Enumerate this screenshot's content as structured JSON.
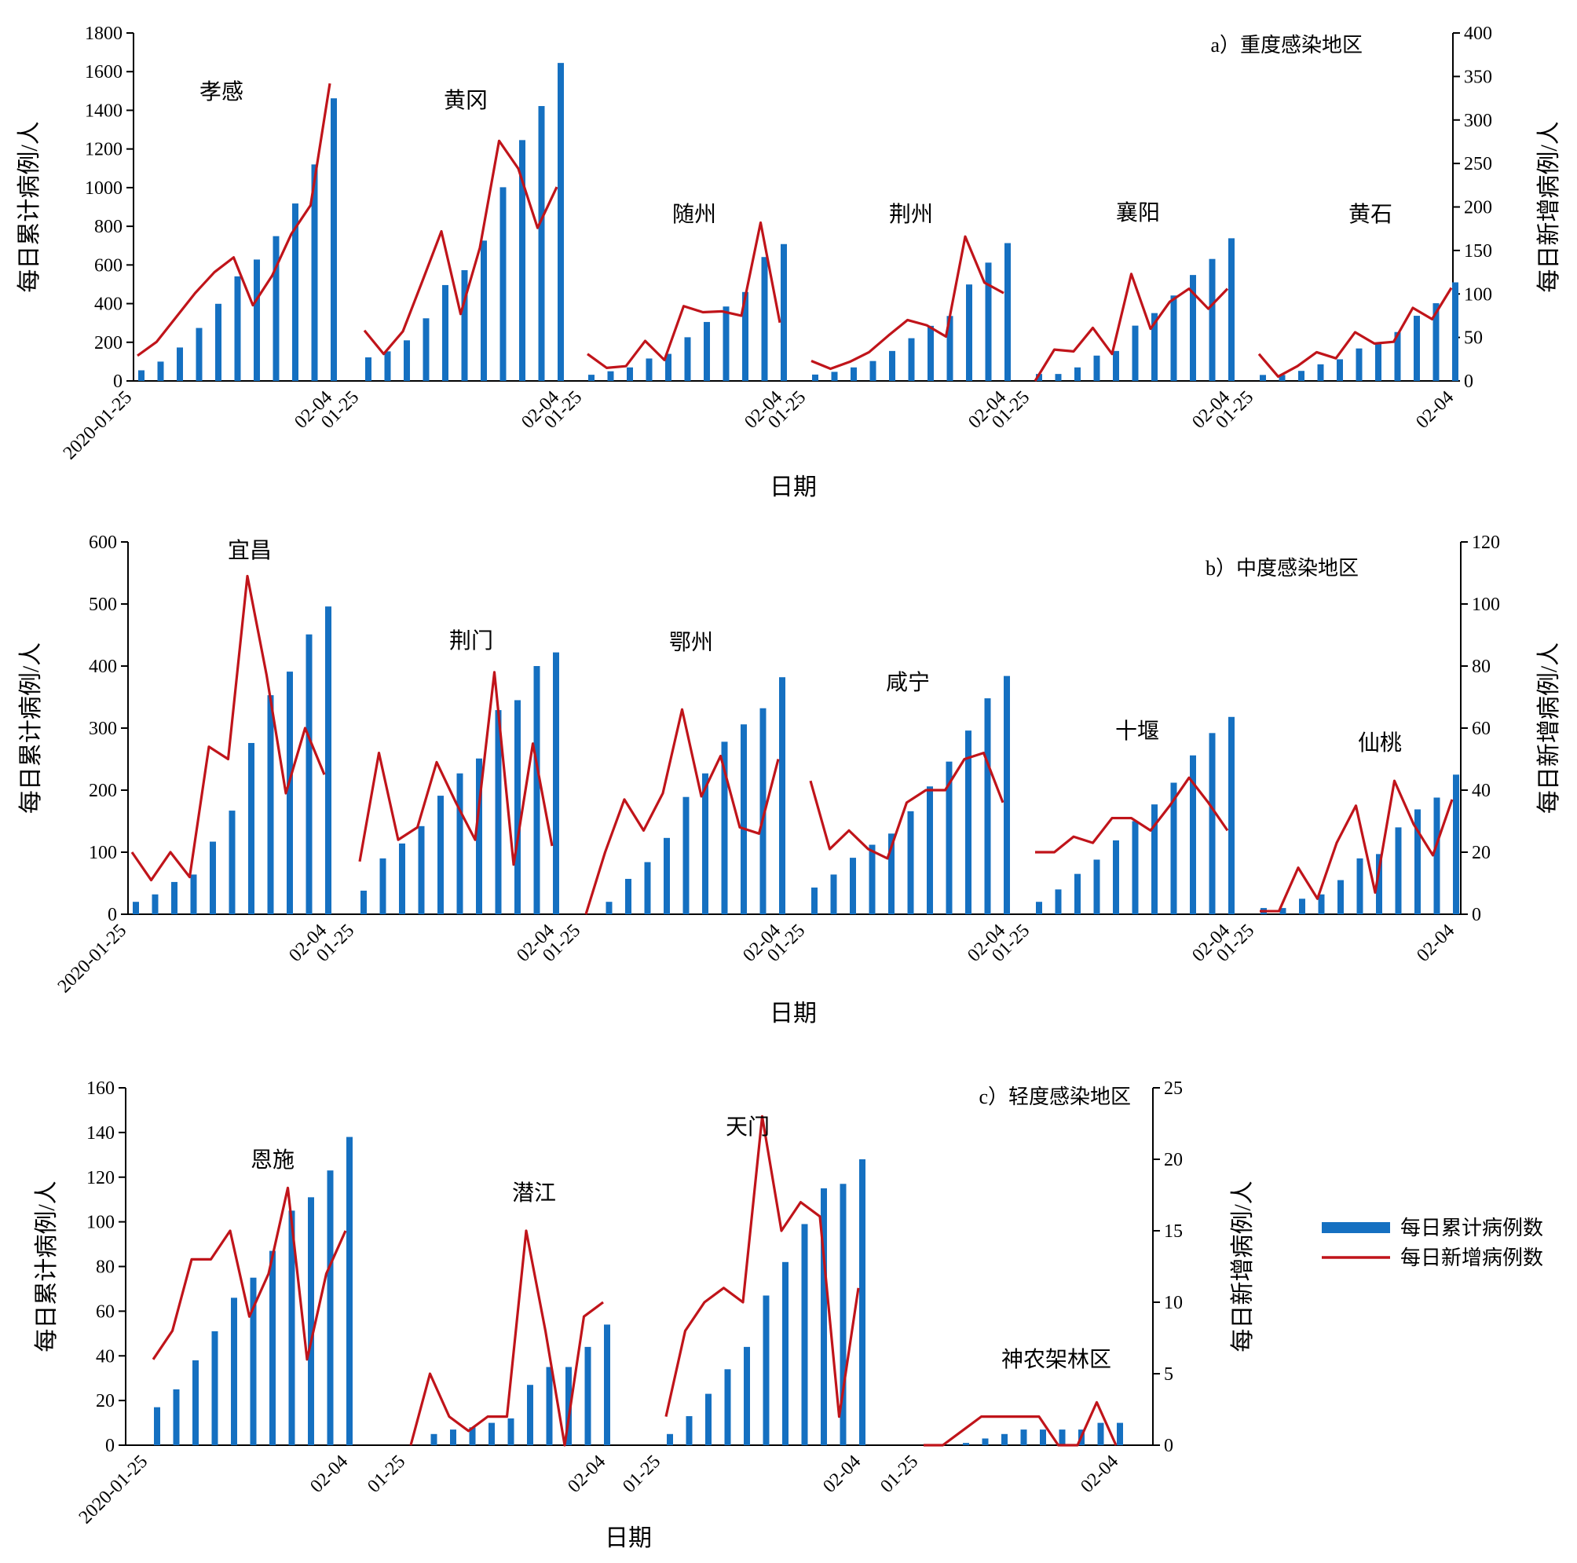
{
  "legend": {
    "bar_label": "每日累计病例数",
    "line_label": "每日新增病例数",
    "bar_color": "#1570c1",
    "line_color": "#c0141a"
  },
  "chart_data": [
    {
      "type": "bar+line",
      "title": "a）重度感染地区",
      "xlabel": "日期",
      "ylabel_left": "每日累计病例/人",
      "ylabel_right": "每日新增病例/人",
      "ylim_left": [
        0,
        1800
      ],
      "yticks_left": [
        0,
        200,
        400,
        600,
        800,
        1000,
        1200,
        1400,
        1600,
        1800
      ],
      "ylim_right": [
        0,
        400
      ],
      "yticks_right": [
        0,
        50,
        100,
        150,
        200,
        250,
        300,
        350,
        400
      ],
      "date_range": [
        "2020-01-25",
        "02-04"
      ],
      "grid": false,
      "groups": [
        {
          "name": "孝感",
          "x_start_label": "2020-01-25",
          "x_end_label": "02-04",
          "cumulative": [
            55,
            100,
            173,
            274,
            399,
            541,
            628,
            749,
            918,
            1120,
            1462
          ],
          "new": [
            29,
            45,
            73,
            101,
            125,
            142,
            87,
            121,
            169,
            202,
            342
          ]
        },
        {
          "name": "黄冈",
          "x_start_label": "01-25",
          "x_end_label": "02-04",
          "cumulative": [
            122,
            153,
            210,
            324,
            496,
            573,
            726,
            1002,
            1246,
            1422,
            1645
          ],
          "new": [
            58,
            31,
            57,
            114,
            172,
            77,
            153,
            276,
            244,
            176,
            223
          ]
        },
        {
          "name": "随州",
          "x_start_label": "01-25",
          "x_end_label": "02-04",
          "cumulative": [
            32,
            50,
            70,
            116,
            140,
            226,
            305,
            385,
            460,
            641,
            708
          ],
          "new": [
            31,
            15,
            17,
            46,
            24,
            86,
            79,
            80,
            75,
            182,
            67
          ]
        },
        {
          "name": "荆州",
          "x_start_label": "01-25",
          "x_end_label": "02-04",
          "cumulative": [
            33,
            47,
            70,
            103,
            155,
            221,
            285,
            336,
            499,
            612,
            713
          ],
          "new": [
            23,
            14,
            22,
            33,
            52,
            70,
            64,
            51,
            166,
            113,
            101
          ]
        },
        {
          "name": "襄阳",
          "x_start_label": "01-25",
          "x_end_label": "02-04",
          "cumulative": [
            36,
            36,
            70,
            131,
            155,
            286,
            351,
            442,
            548,
            631,
            738
          ],
          "new": [
            0,
            36,
            34,
            61,
            31,
            123,
            60,
            91,
            106,
            83,
            106
          ]
        },
        {
          "name": "黄石",
          "x_start_label": "01-25",
          "x_end_label": "02-04",
          "cumulative": [
            31,
            31,
            52,
            86,
            112,
            168,
            198,
            253,
            337,
            402,
            510
          ],
          "new": [
            31,
            5,
            17,
            33,
            26,
            56,
            43,
            45,
            84,
            71,
            107
          ]
        }
      ]
    },
    {
      "type": "bar+line",
      "title": "b）中度感染地区",
      "xlabel": "日期",
      "ylabel_left": "每日累计病例/人",
      "ylabel_right": "每日新增病例/人",
      "ylim_left": [
        0,
        600
      ],
      "yticks_left": [
        0,
        100,
        200,
        300,
        400,
        500,
        600
      ],
      "ylim_right": [
        0,
        120
      ],
      "yticks_right": [
        0,
        20,
        40,
        60,
        80,
        100,
        120
      ],
      "date_range": [
        "2020-01-25",
        "02-04"
      ],
      "grid": false,
      "groups": [
        {
          "name": "宜昌",
          "x_start_label": "2020-01-25",
          "x_end_label": "02-04",
          "cumulative": [
            20,
            32,
            52,
            64,
            117,
            167,
            276,
            353,
            391,
            451,
            496
          ],
          "new": [
            20,
            11,
            20,
            12,
            54,
            50,
            109,
            77,
            39,
            60,
            45
          ]
        },
        {
          "name": "荆门",
          "x_start_label": "01-25",
          "x_end_label": "02-04",
          "cumulative": [
            38,
            90,
            114,
            142,
            191,
            227,
            251,
            329,
            345,
            400,
            422
          ],
          "new": [
            17,
            52,
            24,
            28,
            49,
            36,
            24,
            78,
            16,
            55,
            22
          ]
        },
        {
          "name": "鄂州",
          "x_start_label": "01-25",
          "x_end_label": "02-04",
          "cumulative": [
            0,
            20,
            57,
            84,
            123,
            189,
            227,
            278,
            306,
            332,
            382
          ],
          "new": [
            0,
            20,
            37,
            27,
            39,
            66,
            38,
            51,
            28,
            26,
            50
          ]
        },
        {
          "name": "咸宁",
          "x_start_label": "01-25",
          "x_end_label": "02-04",
          "cumulative": [
            43,
            64,
            91,
            112,
            130,
            166,
            206,
            246,
            296,
            348,
            384
          ],
          "new": [
            43,
            21,
            27,
            21,
            18,
            36,
            40,
            40,
            50,
            52,
            36
          ]
        },
        {
          "name": "十堰",
          "x_start_label": "01-25",
          "x_end_label": "02-04",
          "cumulative": [
            20,
            40,
            65,
            88,
            119,
            150,
            177,
            212,
            256,
            292,
            318
          ],
          "new": [
            20,
            20,
            25,
            23,
            31,
            31,
            27,
            35,
            44,
            36,
            27
          ]
        },
        {
          "name": "仙桃",
          "x_start_label": "01-25",
          "x_end_label": "02-04",
          "cumulative": [
            10,
            10,
            25,
            32,
            55,
            90,
            97,
            140,
            169,
            188,
            225
          ],
          "new": [
            1,
            1,
            15,
            5,
            23,
            35,
            7,
            43,
            29,
            19,
            37
          ]
        }
      ]
    },
    {
      "type": "bar+line",
      "title": "c）轻度感染地区",
      "xlabel": "日期",
      "ylabel_left": "每日累计病例/人",
      "ylabel_right": "每日新增病例/人",
      "ylim_left": [
        0,
        160
      ],
      "yticks_left": [
        0,
        20,
        40,
        60,
        80,
        100,
        120,
        140,
        160
      ],
      "ylim_right": [
        0,
        25
      ],
      "yticks_right": [
        0,
        5,
        10,
        15,
        20,
        25
      ],
      "date_range": [
        "2020-01-25",
        "02-04"
      ],
      "grid": false,
      "groups": [
        {
          "name": "恩施",
          "x_start_label": "2020-01-25",
          "x_end_label": "02-04",
          "cumulative": [
            17,
            25,
            38,
            51,
            66,
            75,
            87,
            105,
            111,
            123,
            138
          ],
          "new": [
            6,
            8,
            13,
            13,
            15,
            9,
            12,
            18,
            6,
            12,
            15
          ]
        },
        {
          "name": "潜江",
          "x_start_label": "01-25",
          "x_end_label": "02-04",
          "cumulative": [
            0,
            5,
            7,
            8,
            10,
            12,
            27,
            35,
            35,
            44,
            54
          ],
          "new": [
            0,
            5,
            2,
            1,
            2,
            2,
            15,
            8,
            0,
            9,
            10
          ]
        },
        {
          "name": "天门",
          "x_start_label": "01-25",
          "x_end_label": "02-04",
          "cumulative": [
            5,
            13,
            23,
            34,
            44,
            67,
            82,
            99,
            115,
            117,
            128
          ],
          "new": [
            2,
            8,
            10,
            11,
            10,
            23,
            15,
            17,
            16,
            2,
            11
          ]
        },
        {
          "name": "神农架林区",
          "x_start_label": "01-25",
          "x_end_label": "02-04",
          "cumulative": [
            0,
            0,
            1,
            3,
            5,
            7,
            7,
            7,
            7,
            10,
            10
          ],
          "new": [
            0,
            0,
            1,
            2,
            2,
            2,
            2,
            0,
            0,
            3,
            0
          ]
        }
      ]
    }
  ]
}
